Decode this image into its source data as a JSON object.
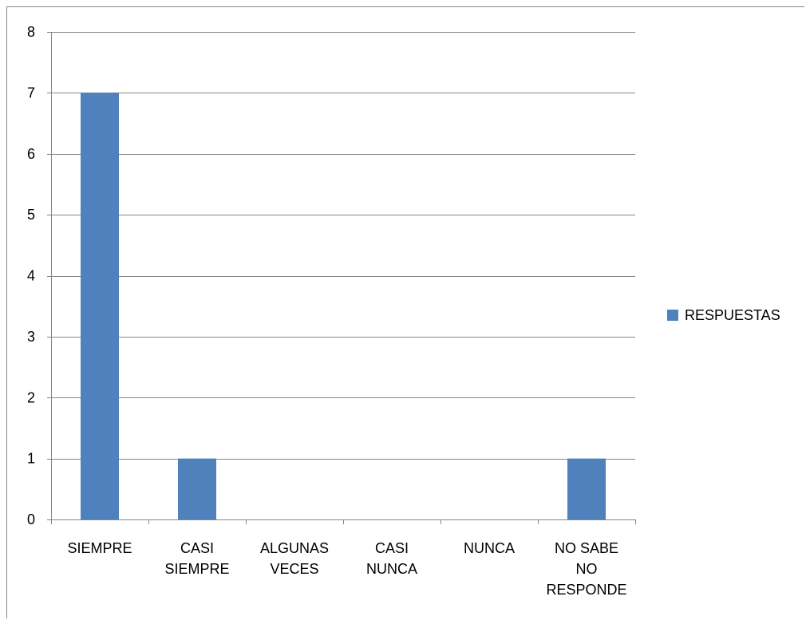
{
  "chart_data": {
    "type": "bar",
    "categories": [
      [
        "SIEMPRE"
      ],
      [
        "CASI",
        "SIEMPRE"
      ],
      [
        "ALGUNAS",
        "VECES"
      ],
      [
        "CASI",
        "NUNCA"
      ],
      [
        "NUNCA"
      ],
      [
        "NO SABE",
        "NO",
        "RESPONDE"
      ]
    ],
    "series": [
      {
        "name": "RESPUESTAS",
        "values": [
          7,
          1,
          0,
          0,
          0,
          1
        ],
        "color": "#4F81BD"
      }
    ],
    "ylim": [
      0,
      8
    ],
    "yticks": [
      0,
      1,
      2,
      3,
      4,
      5,
      6,
      7,
      8
    ],
    "grid": true,
    "legend_position": "right",
    "gridline_color": "#868686",
    "axis_color": "#868686"
  }
}
